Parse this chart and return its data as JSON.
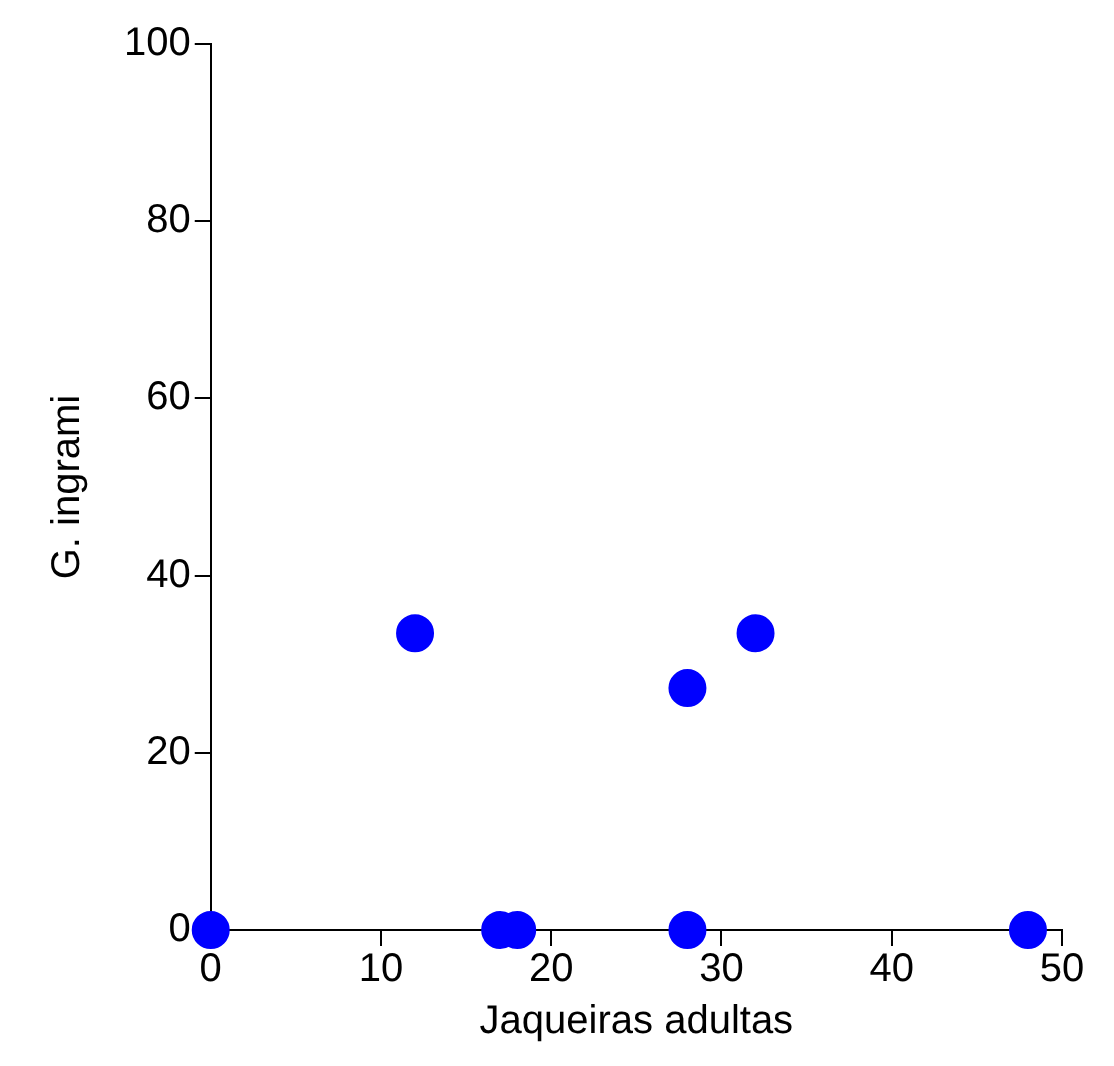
{
  "chart_data": {
    "type": "scatter",
    "xlabel": "Jaqueiras adultas",
    "ylabel": "G. ingrami",
    "x": [
      0,
      12,
      17,
      18,
      28,
      28,
      32,
      48
    ],
    "series": [
      {
        "color": "#0000ff",
        "values": [
          0,
          33.5,
          0,
          0,
          27.3,
          0,
          33.5,
          0
        ]
      }
    ],
    "xlim": [
      0,
      50
    ],
    "ylim": [
      0,
      100
    ],
    "xticks": [
      0,
      10,
      20,
      30,
      40,
      50
    ],
    "yticks": [
      0,
      20,
      40,
      60,
      80,
      100
    ],
    "grid": false,
    "legend": false,
    "marker": "circle"
  }
}
